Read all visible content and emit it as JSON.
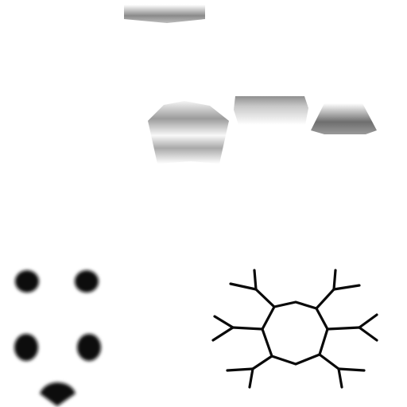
{
  "canvas": {
    "background": "#ffffff"
  },
  "texture_atlas": {
    "upper_patches": [
      {
        "name": "top-strip",
        "colors": {
          "dark": "#8a8a8a",
          "light": "#ffffff"
        }
      },
      {
        "name": "center-curved-patch",
        "colors": {
          "dark": "#9b9b9b",
          "light": "#ffffff"
        }
      },
      {
        "name": "center-right-strip",
        "colors": {
          "dark": "#8f8f8f",
          "light": "#ffffff"
        }
      },
      {
        "name": "right-trapezoid",
        "colors": {
          "dark": "#6e6e6e",
          "light": "#ffffff"
        }
      }
    ],
    "blob_cluster": {
      "count": 5,
      "color": "#111111"
    },
    "branch_ring": {
      "branch_count": 6,
      "stroke_color": "#0a0a0a"
    }
  }
}
